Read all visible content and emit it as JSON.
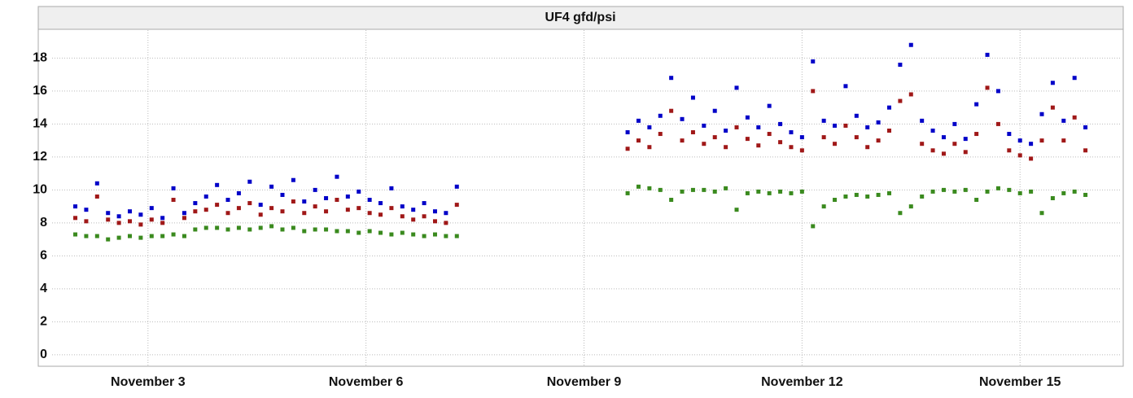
{
  "chart_data": {
    "type": "scatter",
    "title": "UF4 gfd/psi",
    "x": [
      2.0,
      2.15,
      2.3,
      2.45,
      2.6,
      2.75,
      2.9,
      3.05,
      3.2,
      3.35,
      3.5,
      3.65,
      3.8,
      3.95,
      4.1,
      4.25,
      4.4,
      4.55,
      4.7,
      4.85,
      5.0,
      5.15,
      5.3,
      5.45,
      5.6,
      5.75,
      5.9,
      6.05,
      6.2,
      6.35,
      6.5,
      6.65,
      6.8,
      6.95,
      7.1,
      7.25,
      9.6,
      9.75,
      9.9,
      10.05,
      10.2,
      10.35,
      10.5,
      10.65,
      10.8,
      10.95,
      11.1,
      11.25,
      11.4,
      11.55,
      11.7,
      11.85,
      12.0,
      12.15,
      12.3,
      12.45,
      12.6,
      12.75,
      12.9,
      13.05,
      13.2,
      13.35,
      13.5,
      13.65,
      13.8,
      13.95,
      14.1,
      14.25,
      14.4,
      14.55,
      14.7,
      14.85,
      15.0,
      15.15,
      15.3,
      15.45,
      15.6,
      15.75,
      15.9
    ],
    "series": [
      {
        "color": "#0000c8",
        "values": [
          9.0,
          8.8,
          10.4,
          8.6,
          8.4,
          8.7,
          8.5,
          8.9,
          8.3,
          10.1,
          8.6,
          9.2,
          9.6,
          10.3,
          9.4,
          9.8,
          10.5,
          9.1,
          10.2,
          9.7,
          10.6,
          9.3,
          10.0,
          9.5,
          10.8,
          9.6,
          9.9,
          9.4,
          9.2,
          10.1,
          9.0,
          8.8,
          9.2,
          8.7,
          8.6,
          10.2,
          13.5,
          14.2,
          13.8,
          14.5,
          16.8,
          14.3,
          15.6,
          13.9,
          14.8,
          13.6,
          16.2,
          14.4,
          13.8,
          15.1,
          14.0,
          13.5,
          13.2,
          17.8,
          14.2,
          13.9,
          16.3,
          14.5,
          13.8,
          14.1,
          15.0,
          17.6,
          18.8,
          14.2,
          13.6,
          13.2,
          14.0,
          13.1,
          15.2,
          18.2,
          16.0,
          13.4,
          13.0,
          12.8,
          14.6,
          16.5,
          14.2,
          16.8,
          13.8
        ]
      },
      {
        "color": "#a01818",
        "values": [
          8.3,
          8.1,
          9.6,
          8.2,
          8.0,
          8.1,
          7.9,
          8.2,
          8.0,
          9.4,
          8.3,
          8.7,
          8.8,
          9.1,
          8.6,
          8.9,
          9.2,
          8.5,
          8.9,
          8.7,
          9.3,
          8.6,
          9.0,
          8.7,
          9.4,
          8.8,
          8.9,
          8.6,
          8.5,
          8.9,
          8.4,
          8.2,
          8.4,
          8.1,
          8.0,
          9.1,
          12.5,
          13.0,
          12.6,
          13.4,
          14.8,
          13.0,
          13.5,
          12.8,
          13.2,
          12.6,
          13.8,
          13.1,
          12.7,
          13.4,
          12.9,
          12.6,
          12.4,
          16.0,
          13.2,
          12.8,
          13.9,
          13.2,
          12.6,
          13.0,
          13.6,
          15.4,
          15.8,
          12.8,
          12.4,
          12.2,
          12.8,
          12.3,
          13.4,
          16.2,
          14.0,
          12.4,
          12.1,
          11.9,
          13.0,
          15.0,
          13.0,
          14.4,
          12.4
        ]
      },
      {
        "color": "#3a8a1e",
        "values": [
          7.3,
          7.2,
          7.2,
          7.0,
          7.1,
          7.2,
          7.1,
          7.2,
          7.2,
          7.3,
          7.2,
          7.6,
          7.7,
          7.7,
          7.6,
          7.7,
          7.6,
          7.7,
          7.8,
          7.6,
          7.7,
          7.5,
          7.6,
          7.6,
          7.5,
          7.5,
          7.4,
          7.5,
          7.4,
          7.3,
          7.4,
          7.3,
          7.2,
          7.3,
          7.2,
          7.2,
          9.8,
          10.2,
          10.1,
          10.0,
          9.4,
          9.9,
          10.0,
          10.0,
          9.9,
          10.1,
          8.8,
          9.8,
          9.9,
          9.8,
          9.9,
          9.8,
          9.9,
          7.8,
          9.0,
          9.4,
          9.6,
          9.7,
          9.6,
          9.7,
          9.8,
          8.6,
          9.0,
          9.6,
          9.9,
          10.0,
          9.9,
          10.0,
          9.4,
          9.9,
          10.1,
          10.0,
          9.8,
          9.9,
          8.6,
          9.5,
          9.8,
          9.9,
          9.7
        ]
      }
    ],
    "xlim": [
      1.49,
      16.42
    ],
    "xticks": [
      {
        "value": 3,
        "label": "November 3"
      },
      {
        "value": 6,
        "label": "November 6"
      },
      {
        "value": 9,
        "label": "November 9"
      },
      {
        "value": 12,
        "label": "November 12"
      },
      {
        "value": 15,
        "label": "November 15"
      }
    ],
    "ylim": [
      -0.7,
      19.7
    ],
    "yticks": [
      0,
      2,
      4,
      6,
      8,
      10,
      12,
      14,
      16,
      18
    ],
    "grid": true
  }
}
